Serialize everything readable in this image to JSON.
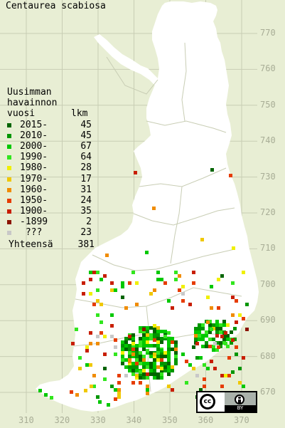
{
  "title": "Centaurea scabiosa",
  "legend": {
    "heading_lines": [
      "Uusimman",
      "havainnon"
    ],
    "column_year": "vuosi",
    "column_count": "lkm",
    "entries": [
      {
        "label": "2015-",
        "count": "45",
        "color": "#006400"
      },
      {
        "label": "2010-",
        "count": "45",
        "color": "#009600"
      },
      {
        "label": "2000-",
        "count": "67",
        "color": "#00c800"
      },
      {
        "label": "1990-",
        "count": "64",
        "color": "#32e61e"
      },
      {
        "label": "1980-",
        "count": "28",
        "color": "#f0f000"
      },
      {
        "label": "1970-",
        "count": "17",
        "color": "#f0c800"
      },
      {
        "label": "1960-",
        "count": "31",
        "color": "#f08c00"
      },
      {
        "label": "1950-",
        "count": "24",
        "color": "#e63c00"
      },
      {
        "label": "1900-",
        "count": "35",
        "color": "#c81e00"
      },
      {
        "label": "-1899",
        "count": "2",
        "color": "#8c1400"
      },
      {
        "label": " ???",
        "count": "23",
        "color": "#c8c8c8"
      }
    ],
    "total_label": "Yhteensä",
    "total_count": "381"
  },
  "axes": {
    "y_ticks": [
      "770",
      "760",
      "750",
      "740",
      "730",
      "720",
      "710",
      "700",
      "690",
      "680",
      "670"
    ],
    "x_ticks": [
      "310",
      "320",
      "330",
      "340",
      "350",
      "360",
      "370"
    ],
    "grid_color": "#c8cdb4",
    "tick_color": "#a8ad96"
  },
  "map": {
    "land_color": "#ffffff",
    "border_color": "#c8cdb4",
    "background_color": "#e8eed4"
  },
  "license": {
    "cc_text": "cc",
    "by_text": "BY"
  }
}
